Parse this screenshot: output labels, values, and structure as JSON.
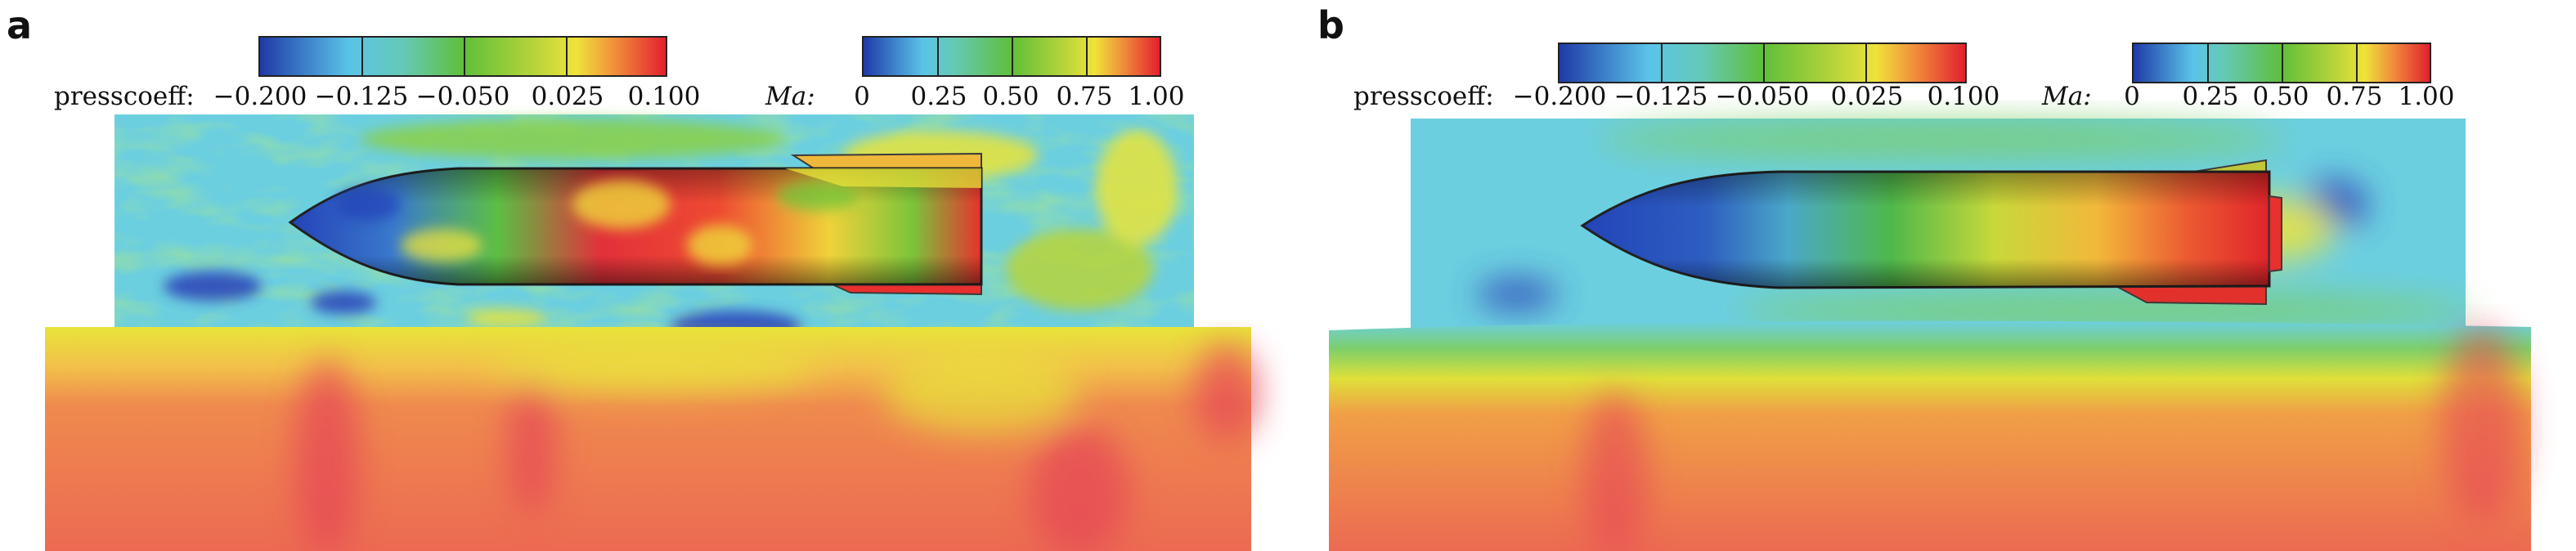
{
  "panels": [
    {
      "letter": "a",
      "description": "unsteady flow field",
      "press_colorbar": {
        "label": "presscoeff:",
        "ticks": [
          "−0.200",
          "−0.125",
          "−0.050",
          "0.025",
          "0.100"
        ]
      },
      "mach_colorbar": {
        "label": "Ma:",
        "ticks": [
          "0",
          "0.25",
          "0.50",
          "0.75",
          "1.00"
        ]
      }
    },
    {
      "letter": "b",
      "description": "smooth flow field",
      "press_colorbar": {
        "label": "presscoeff:",
        "ticks": [
          "−0.200",
          "−0.125",
          "−0.050",
          "0.025",
          "0.100"
        ]
      },
      "mach_colorbar": {
        "label": "Ma:",
        "ticks": [
          "0",
          "0.25",
          "0.50",
          "0.75",
          "1.00"
        ]
      }
    }
  ],
  "colors": {
    "jet_blue": "#2b3fb8",
    "jet_cyan": "#6ccfe0",
    "jet_green": "#63c23a",
    "jet_yellow": "#e8e43a",
    "jet_orange": "#ef8a3a",
    "jet_red": "#e3263a",
    "ground_orange": "#ee7a4a",
    "ground_red": "#e64456"
  }
}
